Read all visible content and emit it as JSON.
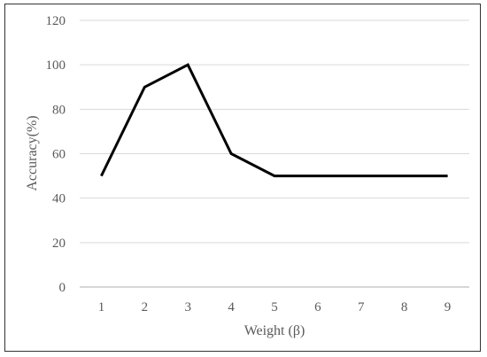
{
  "chart_data": {
    "type": "line",
    "title": "",
    "xlabel": "Weight (β)",
    "ylabel": "Accuracy(%)",
    "x": [
      1,
      2,
      3,
      4,
      5,
      6,
      7,
      8,
      9
    ],
    "series": [
      {
        "values": [
          50,
          90,
          100,
          60,
          50,
          50,
          50,
          50,
          50
        ]
      }
    ],
    "ylim": [
      0,
      120
    ],
    "yticks": [
      0,
      20,
      40,
      60,
      80,
      100,
      120
    ],
    "grid": "horizontal",
    "legend": "none",
    "colors": {
      "line": "#000000",
      "grid": "#d9d9d9",
      "axis": "#bfbfbf",
      "text": "#595959"
    }
  }
}
